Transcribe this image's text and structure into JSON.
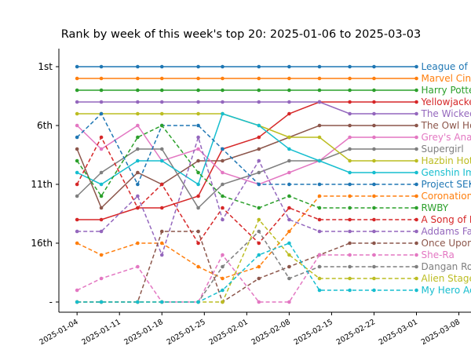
{
  "chart_data": {
    "type": "line",
    "title": "Rank by week of this week's top 20: 2025-01-06 to 2025-03-03",
    "xlabel": "",
    "ylabel": "",
    "x": [
      "2025-01-04",
      "2025-01-08",
      "2025-01-14",
      "2025-01-18",
      "2025-01-24",
      "2025-01-28",
      "2025-02-03",
      "2025-02-08",
      "2025-02-13",
      "2025-02-18",
      "2025-02-22",
      "2025-03-01"
    ],
    "x_ticks": [
      "2025-01-04",
      "2025-01-11",
      "2025-01-18",
      "2025-01-25",
      "2025-02-01",
      "2025-02-08",
      "2025-02-15",
      "2025-02-22",
      "2025-03-01",
      "2025-03-08"
    ],
    "xlim": [
      "2025-01-01",
      "2025-03-10"
    ],
    "y_ticks": [
      {
        "value": 1,
        "label": "1st"
      },
      {
        "value": 6,
        "label": "6th"
      },
      {
        "value": 11,
        "label": "11th"
      },
      {
        "value": 16,
        "label": "16th"
      },
      {
        "value": 21,
        "label": "-"
      }
    ],
    "ylim": [
      22,
      0
    ],
    "y_inverted": true,
    "missing_rank_value": 21,
    "grid": false,
    "series": [
      {
        "name": "League of Legends",
        "color": "#1f77b4",
        "style": "solid",
        "values": [
          1,
          1,
          1,
          1,
          1,
          1,
          1,
          1,
          1,
          1,
          1,
          1
        ]
      },
      {
        "name": "Marvel Cinematic Universe",
        "color": "#ff7f0e",
        "style": "solid",
        "values": [
          2,
          2,
          2,
          2,
          2,
          2,
          2,
          2,
          2,
          2,
          2,
          2
        ]
      },
      {
        "name": "Harry Potter",
        "color": "#2ca02c",
        "style": "solid",
        "values": [
          3,
          3,
          3,
          3,
          3,
          3,
          3,
          3,
          3,
          3,
          3,
          3
        ]
      },
      {
        "name": "Yellowjackets",
        "color": "#d62728",
        "style": "solid",
        "values": [
          14,
          14,
          13,
          13,
          12,
          8,
          7,
          5,
          4,
          4,
          4,
          4
        ]
      },
      {
        "name": "The Wicked Years Series",
        "color": "#9467bd",
        "style": "solid",
        "values": [
          4,
          4,
          4,
          4,
          4,
          4,
          4,
          4,
          4,
          5,
          5,
          5
        ]
      },
      {
        "name": "The Owl House",
        "color": "#8c564b",
        "style": "solid",
        "values": [
          8,
          13,
          10,
          11,
          9,
          9,
          8,
          7,
          6,
          6,
          6,
          6
        ]
      },
      {
        "name": "Grey's Anatomy",
        "color": "#e377c2",
        "style": "solid",
        "values": [
          6,
          8,
          6,
          9,
          8,
          10,
          11,
          10,
          9,
          7,
          7,
          7
        ]
      },
      {
        "name": "Supergirl",
        "color": "#7f7f7f",
        "style": "solid",
        "values": [
          12,
          10,
          8,
          8,
          13,
          11,
          10,
          9,
          9,
          8,
          8,
          8
        ]
      },
      {
        "name": "Hazbin Hotel",
        "color": "#bcbd22",
        "style": "solid",
        "values": [
          5,
          5,
          5,
          5,
          5,
          5,
          6,
          7,
          7,
          9,
          9,
          9
        ]
      },
      {
        "name": "Genshin Impact",
        "color": "#17becf",
        "style": "solid",
        "values": [
          10,
          11,
          9,
          9,
          11,
          5,
          6,
          8,
          9,
          10,
          10,
          10
        ]
      },
      {
        "name": "Project SEKAI COLORFUL STAGE",
        "color": "#1f77b4",
        "style": "dashed",
        "values": [
          7,
          5,
          11,
          6,
          6,
          8,
          11,
          11,
          11,
          11,
          11,
          11
        ]
      },
      {
        "name": "Coronation Street",
        "color": "#ff7f0e",
        "style": "dashed",
        "values": [
          16,
          17,
          16,
          16,
          18,
          19,
          18,
          15,
          12,
          12,
          12,
          12
        ]
      },
      {
        "name": "RWBY",
        "color": "#2ca02c",
        "style": "dashed",
        "values": [
          9,
          12,
          7,
          6,
          10,
          12,
          13,
          12,
          13,
          13,
          13,
          13
        ]
      },
      {
        "name": "A Song of Ice and Fire",
        "color": "#d62728",
        "style": "dashed",
        "values": [
          11,
          7,
          13,
          11,
          16,
          13,
          16,
          13,
          14,
          14,
          14,
          14
        ]
      },
      {
        "name": "Addams Family",
        "color": "#9467bd",
        "style": "dashed",
        "values": [
          15,
          15,
          12,
          17,
          7,
          14,
          9,
          14,
          15,
          15,
          15,
          15
        ]
      },
      {
        "name": "Once Upon a Time",
        "color": "#8c564b",
        "style": "dashed",
        "values": [
          21,
          21,
          21,
          15,
          15,
          21,
          19,
          18,
          17,
          16,
          16,
          16
        ]
      },
      {
        "name": "She-Ra",
        "color": "#e377c2",
        "style": "dashed",
        "values": [
          20,
          19,
          18,
          21,
          21,
          17,
          21,
          21,
          17,
          17,
          17,
          17
        ]
      },
      {
        "name": "Dangan Ronpa",
        "color": "#7f7f7f",
        "style": "dashed",
        "values": [
          21,
          21,
          21,
          21,
          21,
          18,
          15,
          19,
          18,
          18,
          18,
          18
        ]
      },
      {
        "name": "Alien Stage",
        "color": "#bcbd22",
        "style": "dashed",
        "values": [
          21,
          21,
          21,
          21,
          21,
          21,
          14,
          17,
          19,
          19,
          19,
          19
        ]
      },
      {
        "name": "My Hero Academia",
        "color": "#17becf",
        "style": "dashed",
        "values": [
          21,
          21,
          21,
          21,
          21,
          20,
          17,
          16,
          20,
          20,
          20,
          20
        ]
      }
    ]
  }
}
